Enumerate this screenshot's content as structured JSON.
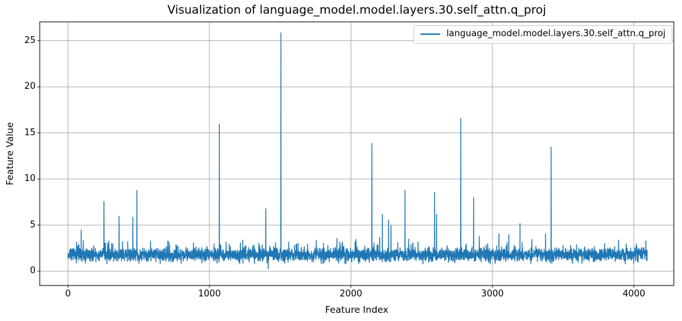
{
  "figure": {
    "background": "#ffffff"
  },
  "chart_data": {
    "type": "line",
    "title": "Visualization of language_model.model.layers.30.self_attn.q_proj",
    "xlabel": "Feature Index",
    "ylabel": "Feature Value",
    "xlim": [
      -200,
      4282
    ],
    "ylim": [
      -1.55,
      27.05
    ],
    "x_ticks": [
      0,
      1000,
      2000,
      3000,
      4000
    ],
    "y_ticks": [
      0,
      5,
      10,
      15,
      20,
      25
    ],
    "grid": true,
    "grid_color": "#b0b0b0",
    "axis_color": "#000000",
    "n_points": 4096,
    "legend": {
      "position": "upper right"
    },
    "series": [
      {
        "name": "language_model.model.layers.30.self_attn.q_proj",
        "color": "#1f77b4",
        "baseline": {
          "description": "dense noise band across all 4096 feature indices",
          "min": 0.9,
          "mean": 1.75,
          "typical_max": 3.6
        },
        "spikes": [
          [
            60,
            3.2
          ],
          [
            93,
            4.5
          ],
          [
            254,
            7.6
          ],
          [
            361,
            6.0
          ],
          [
            458,
            5.9
          ],
          [
            487,
            8.8
          ],
          [
            583,
            3.3
          ],
          [
            1070,
            16.0
          ],
          [
            1398,
            6.8
          ],
          [
            1415,
            0.2
          ],
          [
            1505,
            25.9
          ],
          [
            2148,
            13.9
          ],
          [
            2203,
            3.7
          ],
          [
            2222,
            6.2
          ],
          [
            2266,
            5.6
          ],
          [
            2283,
            5.0
          ],
          [
            2382,
            8.8
          ],
          [
            2591,
            8.6
          ],
          [
            2605,
            6.2
          ],
          [
            2776,
            16.6
          ],
          [
            2867,
            8.0
          ],
          [
            2907,
            3.8
          ],
          [
            3046,
            4.1
          ],
          [
            3116,
            4.0
          ],
          [
            3195,
            5.2
          ],
          [
            3375,
            4.1
          ],
          [
            3415,
            13.5
          ],
          [
            3892,
            3.4
          ]
        ]
      }
    ]
  }
}
